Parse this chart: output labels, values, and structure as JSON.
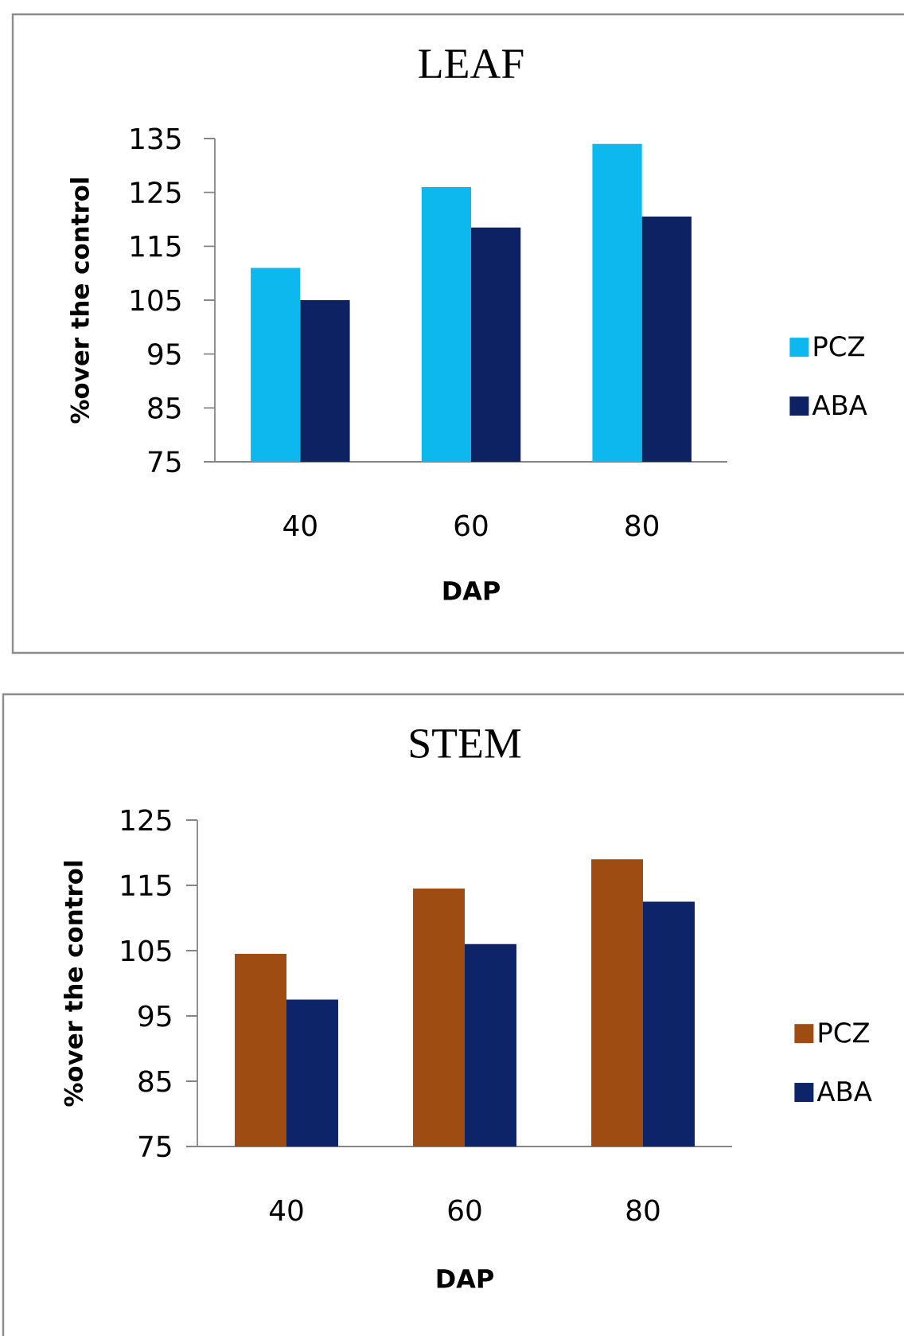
{
  "chart_data": [
    {
      "type": "bar",
      "title": "LEAF",
      "categories": [
        "40",
        "60",
        "80"
      ],
      "xlabel": "DAP",
      "ylabel": "%over the control",
      "series": [
        {
          "name": "PCZ",
          "color": "#0db8ee",
          "values": [
            111,
            126,
            134
          ]
        },
        {
          "name": "ABA",
          "color": "#0c2262",
          "values": [
            105,
            118.5,
            120.5
          ]
        }
      ],
      "ylim": [
        75,
        135
      ],
      "yticks": [
        75,
        85,
        95,
        105,
        115,
        125,
        135
      ],
      "legend": "right"
    },
    {
      "type": "bar",
      "title": "STEM",
      "categories": [
        "40",
        "60",
        "80"
      ],
      "xlabel": "DAP",
      "ylabel": "%over the control",
      "series": [
        {
          "name": "PCZ",
          "color": "#9e4c12",
          "values": [
            104.5,
            114.5,
            119
          ]
        },
        {
          "name": "ABA",
          "color": "#0d2568",
          "values": [
            97.5,
            106,
            112.5
          ]
        }
      ],
      "ylim": [
        75,
        125
      ],
      "yticks": [
        75,
        85,
        95,
        105,
        115,
        125
      ],
      "legend": "right"
    }
  ]
}
